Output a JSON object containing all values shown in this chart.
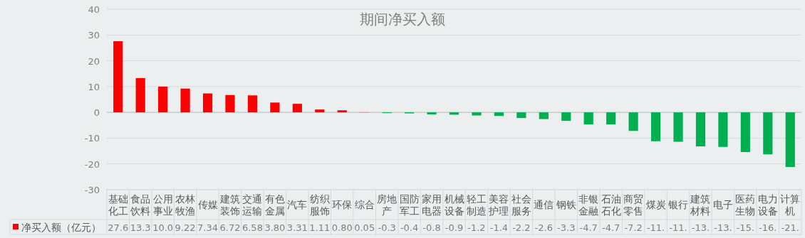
{
  "chart_data": {
    "type": "bar",
    "title": "期间净买入额",
    "categories": [
      "基础化工",
      "食品饮料",
      "公用事业",
      "农林牧渔",
      "传媒",
      "建筑装饰",
      "交通运输",
      "有色金属",
      "汽车",
      "纺织服饰",
      "环保",
      "综合",
      "房地产",
      "国防军工",
      "家用电器",
      "机械设备",
      "轻工制造",
      "美容护理",
      "社会服务",
      "通信",
      "钢铁",
      "非银金融",
      "石油石化",
      "商贸零售",
      "煤炭",
      "银行",
      "建筑材料",
      "电子",
      "医药生物",
      "电力设备",
      "计算机"
    ],
    "series": [
      {
        "name": "净买入额（亿元）",
        "values": [
          27.6,
          13.3,
          10.0,
          9.22,
          7.34,
          6.72,
          6.58,
          3.8,
          3.31,
          1.11,
          0.8,
          0.05,
          -0.3,
          -0.4,
          -0.8,
          -0.9,
          -1.2,
          -1.4,
          -2.2,
          -2.6,
          -3.3,
          -4.7,
          -4.7,
          -7.2,
          -11.2,
          -11.4,
          -13.2,
          -13.4,
          -15.4,
          -16.3,
          -21.2
        ],
        "value_labels": [
          "27.6",
          "13.3",
          "10.0",
          "9.22",
          "7.34",
          "6.72",
          "6.58",
          "3.80",
          "3.31",
          "1.11",
          "0.80",
          "0.05",
          "-0.3",
          "-0.4",
          "-0.8",
          "-0.9",
          "-1.2",
          "-1.4",
          "-2.2",
          "-2.6",
          "-3.3",
          "-4.7",
          "-4.7",
          "-7.2",
          "-11.",
          "-11.",
          "-13.",
          "-13.",
          "-15.",
          "-16.",
          "-21."
        ],
        "colors": [
          "#ff0000",
          "#ff0000",
          "#ff0000",
          "#ff0000",
          "#ff0000",
          "#ff0000",
          "#ff0000",
          "#ff0000",
          "#ff0000",
          "#ff0000",
          "#ff0000",
          "#ff0000",
          "#00b050",
          "#00b050",
          "#00b050",
          "#00b050",
          "#00b050",
          "#00b050",
          "#00b050",
          "#00b050",
          "#00b050",
          "#00b050",
          "#00b050",
          "#00b050",
          "#00b050",
          "#00b050",
          "#00b050",
          "#00b050",
          "#00b050",
          "#00b050",
          "#00b050"
        ]
      }
    ],
    "ylim": [
      -30,
      40
    ],
    "yticks": [
      -30,
      -20,
      -10,
      0,
      10,
      20,
      30,
      40
    ],
    "grid": "y",
    "legend": "bottom left"
  }
}
